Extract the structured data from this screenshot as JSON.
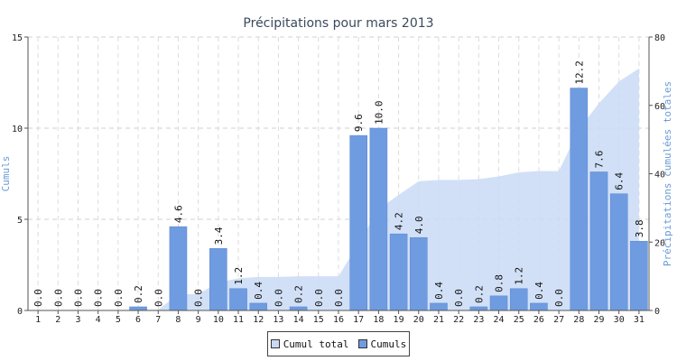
{
  "chart_data": {
    "type": "bar",
    "title": "Précipitations pour mars 2013",
    "categories": [
      "1",
      "2",
      "3",
      "4",
      "5",
      "6",
      "7",
      "8",
      "9",
      "10",
      "11",
      "12",
      "13",
      "14",
      "15",
      "16",
      "17",
      "18",
      "19",
      "20",
      "21",
      "22",
      "23",
      "24",
      "25",
      "26",
      "27",
      "28",
      "29",
      "30",
      "31"
    ],
    "series": [
      {
        "name": "Cumuls",
        "type": "bar",
        "axis": "left",
        "color": "#6f9be0",
        "values": [
          0.0,
          0.0,
          0.0,
          0.0,
          0.0,
          0.2,
          0.0,
          4.6,
          0.0,
          3.4,
          1.2,
          0.4,
          0.0,
          0.2,
          0.0,
          0.0,
          9.6,
          10.0,
          4.2,
          4.0,
          0.4,
          0.0,
          0.2,
          0.8,
          1.2,
          0.4,
          0.0,
          12.2,
          7.6,
          6.4,
          3.8
        ],
        "labels": [
          "0.0",
          "0.0",
          "0.0",
          "0.0",
          "0.0",
          "0.2",
          "0.0",
          "4.6",
          "0.0",
          "3.4",
          "1.2",
          "0.4",
          "0.0",
          "0.2",
          "0.0",
          "0.0",
          "9.6",
          "10.0",
          "4.2",
          "4.0",
          "0.4",
          "0.0",
          "0.2",
          "0.8",
          "1.2",
          "0.4",
          "0.0",
          "12.2",
          "7.6",
          "6.4",
          "3.8"
        ]
      },
      {
        "name": "Cumul total",
        "type": "area",
        "axis": "right",
        "color": "#c9daf6",
        "values": [
          0.0,
          0.0,
          0.0,
          0.0,
          0.0,
          0.2,
          0.2,
          4.8,
          4.8,
          8.2,
          9.4,
          9.8,
          9.8,
          10.0,
          10.0,
          10.0,
          19.6,
          29.6,
          33.8,
          37.8,
          38.2,
          38.2,
          38.4,
          39.2,
          40.4,
          40.8,
          40.8,
          53.0,
          60.6,
          67.0,
          70.8
        ]
      }
    ],
    "ylabel": "Cumuls",
    "y2label": "Précipitations cumulées totales",
    "ylim": [
      0,
      15
    ],
    "y2lim": [
      0,
      80
    ],
    "yticks": [
      "0",
      "5",
      "10",
      "15"
    ],
    "y2ticks": [
      "0",
      "20",
      "40",
      "60",
      "80"
    ],
    "grid": true,
    "legend": [
      {
        "label": "Cumul total",
        "color": "#c9daf6"
      },
      {
        "label": "Cumuls",
        "color": "#6f9be0"
      }
    ],
    "legend_position": "bottom"
  }
}
